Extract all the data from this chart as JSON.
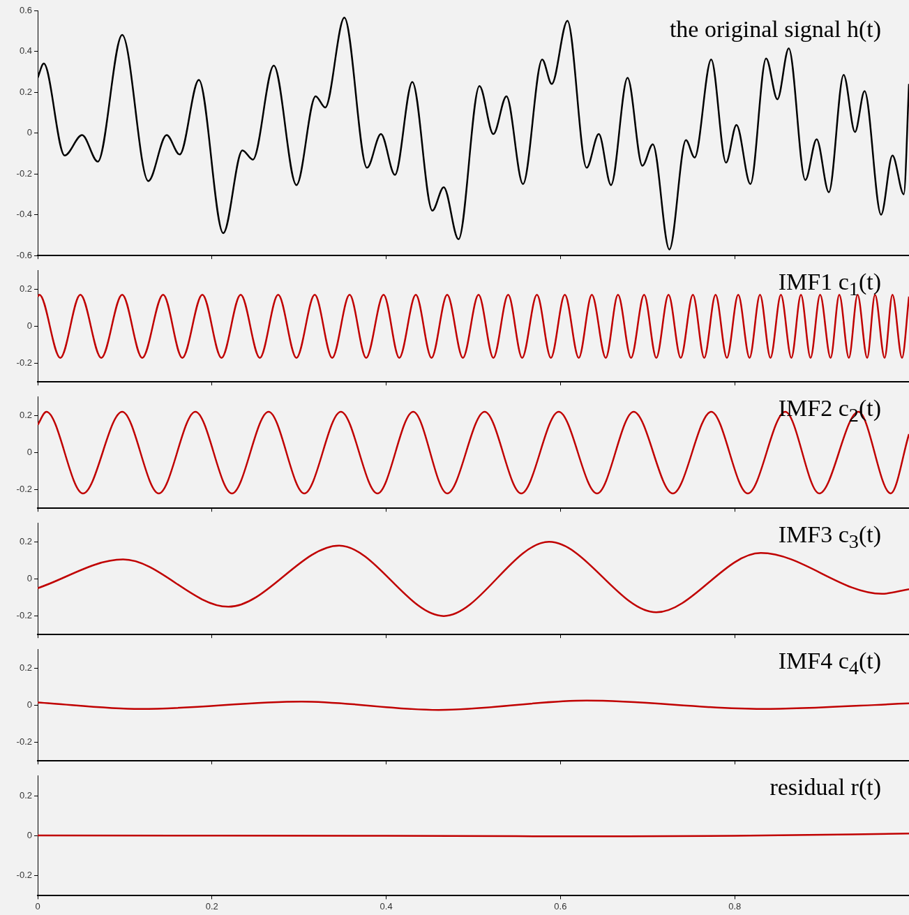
{
  "chart_data": [
    {
      "type": "line",
      "annotations": [
        "the original signal h(t)"
      ],
      "xlim": [
        0,
        1
      ],
      "xticks": [
        0,
        0.2,
        0.4,
        0.6,
        0.8
      ],
      "ylim": [
        -0.6,
        0.6
      ],
      "yticks": [
        -0.6,
        -0.4,
        -0.2,
        0,
        0.2,
        0.4,
        0.6
      ],
      "tick_labels": "y",
      "legend": false,
      "series": [
        {
          "color": "#000000",
          "x": [
            0,
            0.007,
            0.031,
            0.051,
            0.069,
            0.097,
            0.127,
            0.148,
            0.163,
            0.185,
            0.213,
            0.235,
            0.247,
            0.271,
            0.297,
            0.319,
            0.33,
            0.352,
            0.378,
            0.394,
            0.41,
            0.43,
            0.453,
            0.466,
            0.483,
            0.507,
            0.523,
            0.538,
            0.557,
            0.579,
            0.59,
            0.608,
            0.63,
            0.644,
            0.658,
            0.677,
            0.694,
            0.706,
            0.725,
            0.744,
            0.754,
            0.773,
            0.79,
            0.802,
            0.818,
            0.836,
            0.849,
            0.862,
            0.881,
            0.894,
            0.908,
            0.925,
            0.938,
            0.949,
            0.968,
            0.981,
            0.994,
            1
          ],
          "values": [
            0.27,
            0.34,
            -0.11,
            -0.01,
            -0.14,
            0.48,
            -0.235,
            -0.01,
            -0.105,
            0.26,
            -0.49,
            -0.085,
            -0.13,
            0.33,
            -0.255,
            0.18,
            0.125,
            0.565,
            -0.17,
            -0.005,
            -0.205,
            0.25,
            -0.38,
            -0.265,
            -0.52,
            0.23,
            -0.005,
            0.18,
            -0.25,
            0.36,
            0.24,
            0.55,
            -0.17,
            -0.005,
            -0.255,
            0.27,
            -0.16,
            -0.055,
            -0.57,
            -0.035,
            -0.12,
            0.36,
            -0.145,
            0.04,
            -0.25,
            0.365,
            0.165,
            0.415,
            -0.23,
            -0.03,
            -0.29,
            0.285,
            0.005,
            0.205,
            -0.4,
            -0.11,
            -0.3,
            0.24
          ]
        }
      ]
    },
    {
      "type": "line",
      "annotations": [
        "IMF1 c$_{1}$(t)"
      ],
      "xlim": [
        0,
        1
      ],
      "xticks": [
        0,
        0.2,
        0.4,
        0.6,
        0.8
      ],
      "ylim": [
        -0.3,
        0.3
      ],
      "yticks": [
        -0.2,
        0,
        0.2
      ],
      "tick_labels": "y",
      "legend": false,
      "series": [
        {
          "color": "#c00000",
          "x": [
            0,
            0.002,
            0.026,
            0.049,
            0.073,
            0.097,
            0.12,
            0.144,
            0.166,
            0.189,
            0.211,
            0.233,
            0.255,
            0.276,
            0.297,
            0.318,
            0.338,
            0.358,
            0.377,
            0.397,
            0.415,
            0.434,
            0.452,
            0.47,
            0.488,
            0.506,
            0.523,
            0.54,
            0.556,
            0.573,
            0.589,
            0.605,
            0.621,
            0.636,
            0.652,
            0.666,
            0.681,
            0.696,
            0.71,
            0.724,
            0.738,
            0.752,
            0.765,
            0.778,
            0.791,
            0.804,
            0.817,
            0.829,
            0.841,
            0.853,
            0.865,
            0.876,
            0.887,
            0.898,
            0.91,
            0.92,
            0.931,
            0.941,
            0.952,
            0.961,
            0.972,
            0.981,
            0.992,
            1
          ],
          "values": [
            0.16,
            0.17,
            -0.17,
            0.17,
            -0.17,
            0.17,
            -0.17,
            0.17,
            -0.17,
            0.17,
            -0.17,
            0.17,
            -0.17,
            0.17,
            -0.17,
            0.17,
            -0.17,
            0.17,
            -0.17,
            0.17,
            -0.17,
            0.17,
            -0.17,
            0.17,
            -0.17,
            0.17,
            -0.17,
            0.17,
            -0.17,
            0.17,
            -0.17,
            0.17,
            -0.17,
            0.17,
            -0.17,
            0.17,
            -0.17,
            0.17,
            -0.17,
            0.17,
            -0.17,
            0.17,
            -0.17,
            0.17,
            -0.17,
            0.17,
            -0.17,
            0.17,
            -0.17,
            0.17,
            -0.17,
            0.17,
            -0.17,
            0.17,
            -0.17,
            0.17,
            -0.17,
            0.17,
            -0.17,
            0.17,
            -0.17,
            0.17,
            -0.17,
            0.16
          ]
        }
      ]
    },
    {
      "type": "line",
      "annotations": [
        "IMF2 c$_{2}$(t)"
      ],
      "xlim": [
        0,
        1
      ],
      "xticks": [
        0,
        0.2,
        0.4,
        0.6,
        0.8
      ],
      "ylim": [
        -0.3,
        0.3
      ],
      "yticks": [
        -0.2,
        0,
        0.2
      ],
      "tick_labels": "y",
      "legend": false,
      "series": [
        {
          "color": "#c00000",
          "x": [
            0,
            0.01,
            0.052,
            0.097,
            0.139,
            0.181,
            0.223,
            0.265,
            0.306,
            0.348,
            0.39,
            0.431,
            0.47,
            0.513,
            0.555,
            0.598,
            0.642,
            0.684,
            0.729,
            0.773,
            0.815,
            0.858,
            0.897,
            0.942,
            0.979,
            1
          ],
          "values": [
            0.15,
            0.22,
            -0.22,
            0.22,
            -0.22,
            0.22,
            -0.22,
            0.22,
            -0.22,
            0.22,
            -0.22,
            0.22,
            -0.22,
            0.22,
            -0.22,
            0.22,
            -0.22,
            0.22,
            -0.22,
            0.22,
            -0.22,
            0.22,
            -0.22,
            0.22,
            -0.22,
            0.1
          ]
        }
      ]
    },
    {
      "type": "line",
      "annotations": [
        "IMF3 c$_{3}$(t)"
      ],
      "xlim": [
        0,
        1
      ],
      "xticks": [
        0,
        0.2,
        0.4,
        0.6,
        0.8
      ],
      "ylim": [
        -0.3,
        0.3
      ],
      "yticks": [
        -0.2,
        0,
        0.2
      ],
      "tick_labels": "y",
      "legend": false,
      "series": [
        {
          "color": "#c00000",
          "x": [
            0,
            0.098,
            0.219,
            0.346,
            0.466,
            0.587,
            0.71,
            0.83,
            0.969,
            1
          ],
          "values": [
            -0.05,
            0.105,
            -0.15,
            0.18,
            -0.2,
            0.2,
            -0.18,
            0.14,
            -0.08,
            -0.055
          ]
        }
      ]
    },
    {
      "type": "line",
      "annotations": [
        "IMF4 c$_{4}$(t)"
      ],
      "xlim": [
        0,
        1
      ],
      "xticks": [
        0,
        0.2,
        0.4,
        0.6,
        0.8
      ],
      "ylim": [
        -0.3,
        0.3
      ],
      "yticks": [
        -0.2,
        0,
        0.2
      ],
      "tick_labels": "y",
      "legend": false,
      "series": [
        {
          "color": "#c00000",
          "x": [
            0,
            0.118,
            0.303,
            0.46,
            0.63,
            0.831,
            1
          ],
          "values": [
            0.015,
            -0.02,
            0.02,
            -0.025,
            0.025,
            -0.02,
            0.01
          ]
        }
      ]
    },
    {
      "type": "line",
      "annotations": [
        "residual r(t)"
      ],
      "xlim": [
        0,
        1
      ],
      "xticks": [
        0,
        0.2,
        0.4,
        0.6,
        0.8
      ],
      "ylim": [
        -0.3,
        0.3
      ],
      "yticks": [
        -0.2,
        0,
        0.2
      ],
      "legend": false,
      "series": [
        {
          "color": "#c00000",
          "x": [
            0,
            0.4,
            0.6,
            0.8,
            1
          ],
          "values": [
            0.002,
            0,
            -0.002,
            0,
            0.012
          ]
        }
      ]
    }
  ]
}
